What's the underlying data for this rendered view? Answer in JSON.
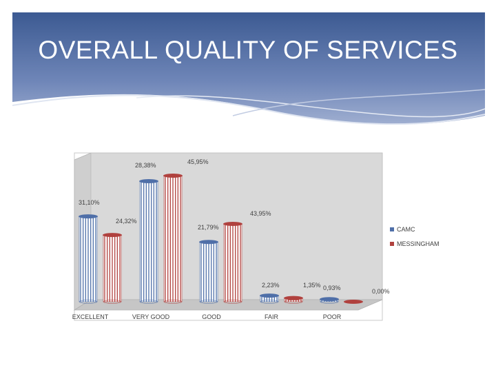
{
  "slide": {
    "title": "OVERALL QUALITY OF SERVICES"
  },
  "colors": {
    "banner_dark": "#3c5a92",
    "banner_light": "#c9d3e6",
    "series_1": "#4f6fa8",
    "series_2": "#b0413e",
    "plot_bg": "#d9d9d9"
  },
  "chart_data": {
    "type": "bar",
    "categories": [
      "EXCELLENT",
      "VERY GOOD",
      "GOOD",
      "FAIR",
      "POOR"
    ],
    "series": [
      {
        "name": "CAMC",
        "values": [
          31.1,
          43.95,
          21.79,
          2.23,
          0.93
        ],
        "labels": [
          "31,10%",
          "43,95%",
          "21,79%",
          "2,23%",
          "0,93%"
        ]
      },
      {
        "name": "MESSINGHAM",
        "values": [
          24.32,
          45.95,
          28.38,
          1.35,
          0.0
        ],
        "labels": [
          "24,32%",
          "45,95%",
          "28,38%",
          "1,35%",
          "0,00%"
        ]
      }
    ],
    "title": "",
    "xlabel": "",
    "ylabel": "",
    "ylim": [
      0,
      50
    ],
    "grid": false,
    "legend": "right"
  }
}
